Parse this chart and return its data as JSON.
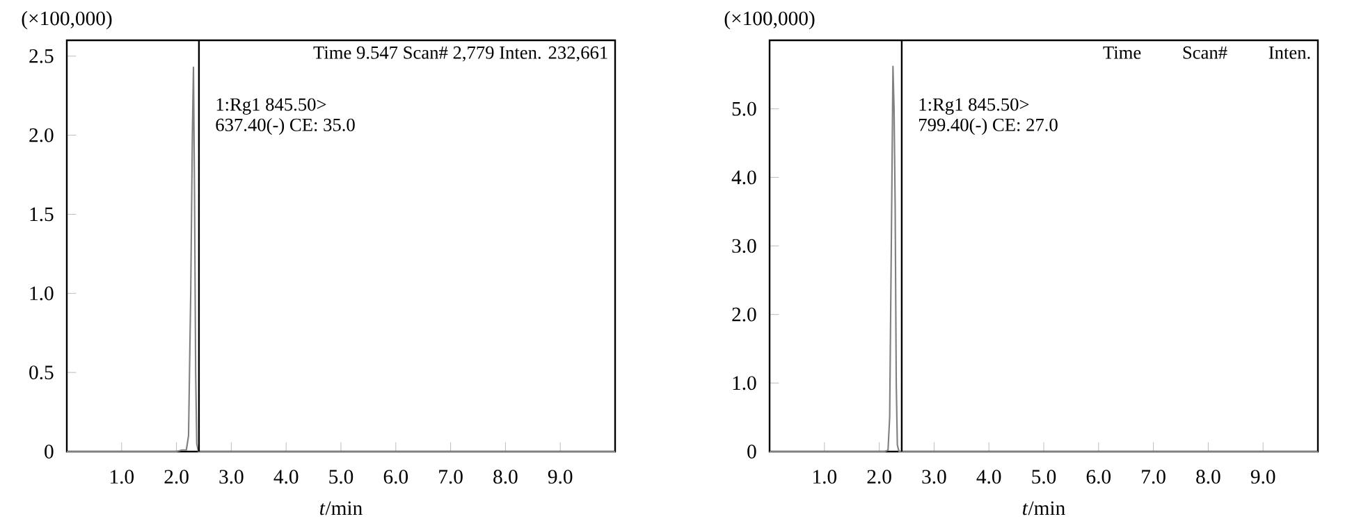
{
  "chart_data": [
    {
      "type": "line",
      "xlabel": "*t*/min",
      "ylabel": "(×100,000)",
      "annotations": [
        "Time  9.547  Scan# 2,779  Inten.  232,661",
        "1:Rg1 845.50>",
        "637.40(-) CE: 35.0"
      ],
      "x": [
        0,
        2.0,
        2.1,
        2.18,
        2.22,
        2.26,
        2.29,
        2.31,
        2.33,
        2.35,
        2.37,
        2.4,
        10
      ],
      "series": [
        {
          "color": "#808080",
          "values": [
            0,
            0,
            0.01,
            0.01,
            0.1,
            1.0,
            2.0,
            2.43,
            1.6,
            0.5,
            0.05,
            0,
            0
          ]
        }
      ],
      "xlim": [
        0,
        10
      ],
      "ylim": [
        0,
        2.6
      ],
      "xticks": [
        {
          "value": 1,
          "label": "1.0"
        },
        {
          "value": 2,
          "label": "2.0"
        },
        {
          "value": 3,
          "label": "3.0"
        },
        {
          "value": 4,
          "label": "4.0"
        },
        {
          "value": 5,
          "label": "5.0"
        },
        {
          "value": 6,
          "label": "6.0"
        },
        {
          "value": 7,
          "label": "7.0"
        },
        {
          "value": 8,
          "label": "8.0"
        },
        {
          "value": 9,
          "label": "9.0"
        }
      ],
      "yticks": [
        0,
        0.5,
        {
          "value": 1,
          "label": "1.0"
        },
        1.5,
        {
          "value": 2,
          "label": "2.0"
        },
        2.5
      ],
      "ref_lines": [
        {
          "axis": "x",
          "value": 2.41,
          "color": "#000000"
        }
      ]
    },
    {
      "type": "line",
      "xlabel": "*t*/min",
      "ylabel": "(×100,000)",
      "annotations": [
        "Time",
        "Scan#",
        "Inten.",
        "1:Rg1 845.50>",
        "799.40(-) CE: 27.0"
      ],
      "x": [
        0,
        2.1,
        2.16,
        2.19,
        2.22,
        2.25,
        2.27,
        2.29,
        2.31,
        2.33,
        2.36,
        10
      ],
      "series": [
        {
          "color": "#808080",
          "values": [
            0,
            0,
            0.02,
            0.5,
            3.0,
            5.62,
            5.0,
            3.6,
            1.0,
            0.1,
            0,
            0
          ]
        }
      ],
      "xlim": [
        0,
        10
      ],
      "ylim": [
        0,
        6.0
      ],
      "xticks": [
        {
          "value": 1,
          "label": "1.0"
        },
        {
          "value": 2,
          "label": "2.0"
        },
        {
          "value": 3,
          "label": "3.0"
        },
        {
          "value": 4,
          "label": "4.0"
        },
        {
          "value": 5,
          "label": "5.0"
        },
        {
          "value": 6,
          "label": "6.0"
        },
        {
          "value": 7,
          "label": "7.0"
        },
        {
          "value": 8,
          "label": "8.0"
        },
        {
          "value": 9,
          "label": "9.0"
        }
      ],
      "yticks": [
        0,
        {
          "value": 1,
          "label": "1.0"
        },
        {
          "value": 2,
          "label": "2.0"
        },
        {
          "value": 3,
          "label": "3.0"
        },
        {
          "value": 4,
          "label": "4.0"
        },
        {
          "value": 5,
          "label": "5.0"
        }
      ],
      "ref_lines": [
        {
          "axis": "x",
          "value": 2.41,
          "color": "#000000"
        }
      ]
    }
  ]
}
